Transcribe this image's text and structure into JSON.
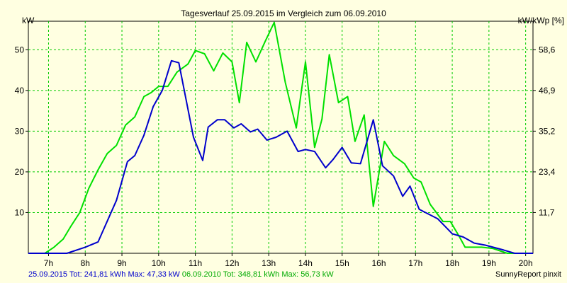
{
  "chart_data": {
    "type": "line",
    "title": "Tagesverlauf 25.09.2015 im Vergleich zum 06.09.2010",
    "ylabel_left": "kW",
    "ylabel_right": "kW/kWp [%]",
    "x_domain": [
      6.45,
      20.2
    ],
    "ylim": [
      0,
      57
    ],
    "x_ticks": [
      7,
      8,
      9,
      10,
      11,
      12,
      13,
      14,
      15,
      16,
      17,
      18,
      19,
      20
    ],
    "x_tick_labels": [
      "7h",
      "8h",
      "9h",
      "10h",
      "11h",
      "12h",
      "13h",
      "14h",
      "15h",
      "16h",
      "17h",
      "18h",
      "19h",
      "20h"
    ],
    "y_ticks_left": [
      10,
      20,
      30,
      40,
      50
    ],
    "y_ticks_left_labels": [
      "10",
      "20",
      "30",
      "40",
      "50"
    ],
    "y_ticks_right": [
      10,
      20,
      30,
      40,
      50
    ],
    "y_ticks_right_labels": [
      "11,7",
      "23,4",
      "35,2",
      "46,9",
      "58,6"
    ],
    "grid": true,
    "colors": {
      "background": "#ffffe1",
      "grid": "#00cc00",
      "series_2015": "#0000cc",
      "series_2010": "#00e000",
      "footer_blue": "#0000cc",
      "footer_green": "#00aa00"
    },
    "series": [
      {
        "name": "25.09.2015",
        "color": "#0000cc",
        "points": [
          [
            6.45,
            0
          ],
          [
            7.5,
            0
          ],
          [
            8.0,
            1.5
          ],
          [
            8.35,
            2.8
          ],
          [
            8.85,
            13
          ],
          [
            9.15,
            22.5
          ],
          [
            9.35,
            24
          ],
          [
            9.6,
            29
          ],
          [
            9.85,
            36
          ],
          [
            10.1,
            40
          ],
          [
            10.35,
            47.3
          ],
          [
            10.55,
            46.8
          ],
          [
            10.95,
            28.5
          ],
          [
            11.2,
            22.8
          ],
          [
            11.35,
            31
          ],
          [
            11.6,
            32.8
          ],
          [
            11.8,
            32.8
          ],
          [
            12.05,
            30.8
          ],
          [
            12.25,
            31.8
          ],
          [
            12.5,
            29.8
          ],
          [
            12.7,
            30.5
          ],
          [
            12.95,
            27.8
          ],
          [
            13.2,
            28.5
          ],
          [
            13.5,
            30
          ],
          [
            13.8,
            25
          ],
          [
            14.0,
            25.5
          ],
          [
            14.25,
            25
          ],
          [
            14.55,
            21
          ],
          [
            14.75,
            23
          ],
          [
            15.0,
            26
          ],
          [
            15.25,
            22.2
          ],
          [
            15.5,
            22
          ],
          [
            15.85,
            32.8
          ],
          [
            16.1,
            21.5
          ],
          [
            16.4,
            19
          ],
          [
            16.65,
            14
          ],
          [
            16.85,
            16.5
          ],
          [
            17.1,
            10.8
          ],
          [
            17.6,
            8.5
          ],
          [
            18.0,
            4.8
          ],
          [
            18.3,
            4
          ],
          [
            18.6,
            2.5
          ],
          [
            18.9,
            2
          ],
          [
            19.4,
            0.8
          ],
          [
            19.7,
            0
          ],
          [
            20.2,
            0
          ]
        ]
      },
      {
        "name": "06.09.2010",
        "color": "#00e000",
        "points": [
          [
            6.45,
            0
          ],
          [
            6.9,
            0
          ],
          [
            7.15,
            1.5
          ],
          [
            7.4,
            3.5
          ],
          [
            7.6,
            6.5
          ],
          [
            7.85,
            10
          ],
          [
            8.1,
            16
          ],
          [
            8.35,
            20.5
          ],
          [
            8.6,
            24.5
          ],
          [
            8.85,
            26.5
          ],
          [
            9.1,
            31.5
          ],
          [
            9.35,
            33.5
          ],
          [
            9.6,
            38.5
          ],
          [
            9.8,
            39.5
          ],
          [
            10.0,
            41
          ],
          [
            10.25,
            41
          ],
          [
            10.5,
            44.5
          ],
          [
            10.8,
            46.5
          ],
          [
            11.0,
            49.8
          ],
          [
            11.25,
            49
          ],
          [
            11.5,
            44.8
          ],
          [
            11.75,
            49.2
          ],
          [
            12.0,
            47
          ],
          [
            12.2,
            37
          ],
          [
            12.4,
            51.8
          ],
          [
            12.65,
            47
          ],
          [
            12.9,
            52
          ],
          [
            13.15,
            56.7
          ],
          [
            13.45,
            42
          ],
          [
            13.75,
            30.8
          ],
          [
            14.0,
            47
          ],
          [
            14.25,
            26
          ],
          [
            14.45,
            33
          ],
          [
            14.65,
            48.8
          ],
          [
            14.9,
            37
          ],
          [
            15.15,
            38.5
          ],
          [
            15.35,
            27.5
          ],
          [
            15.6,
            34
          ],
          [
            15.85,
            11.5
          ],
          [
            16.15,
            27.5
          ],
          [
            16.4,
            24
          ],
          [
            16.7,
            22
          ],
          [
            16.95,
            18.5
          ],
          [
            17.15,
            17.5
          ],
          [
            17.4,
            12
          ],
          [
            17.75,
            7.8
          ],
          [
            17.95,
            7.8
          ],
          [
            18.2,
            4
          ],
          [
            18.35,
            1.5
          ],
          [
            18.8,
            1.5
          ],
          [
            19.1,
            1.2
          ],
          [
            19.5,
            0
          ],
          [
            20.2,
            0
          ]
        ]
      }
    ]
  },
  "footer": {
    "left_2015": "25.09.2015 Tot: 241,81 kWh Max: 47,33 kW",
    "left_2010": "06.09.2010 Tot: 348,81 kWh Max: 56,73 kW",
    "right": "SunnyReport pinxit"
  }
}
